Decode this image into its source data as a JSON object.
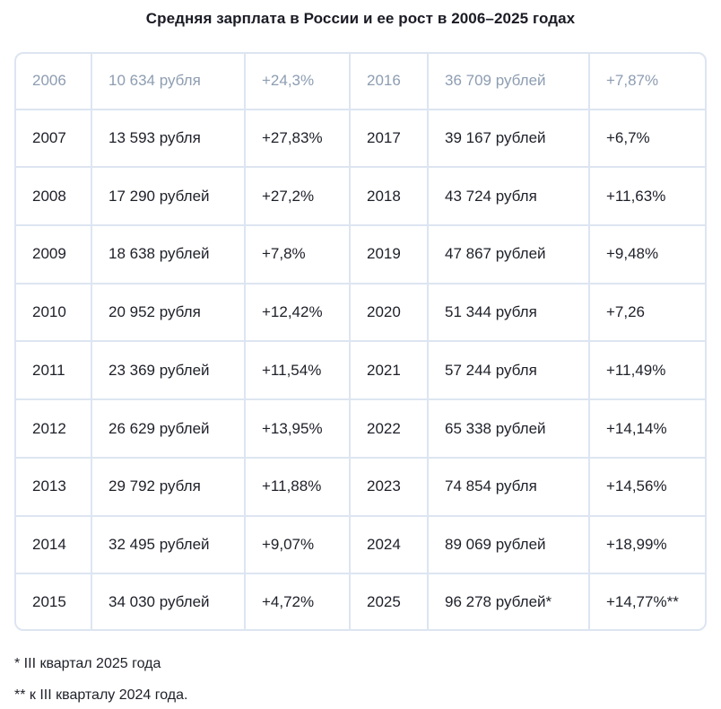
{
  "title": "Средняя зарплата в России и ее рост в 2006–2025 годах",
  "colors": {
    "background": "#ffffff",
    "title_text": "#1a1b24",
    "cell_text": "#1e2029",
    "muted_row_text": "#8d9db1",
    "table_border": "#dde5f1"
  },
  "table": {
    "rows": [
      {
        "muted": true,
        "cells": [
          "2006",
          "10 634 рубля",
          "+24,3%",
          "2016",
          "36 709 рублей",
          "+7,87%"
        ]
      },
      {
        "muted": false,
        "cells": [
          "2007",
          "13 593 рубля",
          "+27,83%",
          "2017",
          "39 167 рублей",
          "+6,7%"
        ]
      },
      {
        "muted": false,
        "cells": [
          "2008",
          "17 290 рублей",
          "+27,2%",
          "2018",
          "43 724 рубля",
          "+11,63%"
        ]
      },
      {
        "muted": false,
        "cells": [
          "2009",
          "18 638 рублей",
          "+7,8%",
          "2019",
          "47 867 рублей",
          "+9,48%"
        ]
      },
      {
        "muted": false,
        "cells": [
          "2010",
          "20 952 рубля",
          "+12,42%",
          "2020",
          "51 344 рубля",
          "+7,26"
        ]
      },
      {
        "muted": false,
        "cells": [
          "2011",
          "23 369 рублей",
          "+11,54%",
          "2021",
          "57 244 рубля",
          "+11,49%"
        ]
      },
      {
        "muted": false,
        "cells": [
          "2012",
          "26 629 рублей",
          "+13,95%",
          "2022",
          "65 338 рублей",
          "+14,14%"
        ]
      },
      {
        "muted": false,
        "cells": [
          "2013",
          "29 792 рубля",
          "+11,88%",
          "2023",
          "74 854 рубля",
          "+14,56%"
        ]
      },
      {
        "muted": false,
        "cells": [
          "2014",
          "32 495 рублей",
          "+9,07%",
          "2024",
          "89 069 рублей",
          "+18,99%"
        ]
      },
      {
        "muted": false,
        "cells": [
          "2015",
          "34 030 рублей",
          "+4,72%",
          "2025",
          "96 278 рублей*",
          "+14,77%**"
        ]
      }
    ]
  },
  "footnotes": [
    "* III квартал 2025 года",
    "** к III кварталу 2024 года."
  ],
  "chart_data": {
    "type": "table",
    "title": "Средняя зарплата в России и ее рост в 2006–2025 годах",
    "points": [
      {
        "year": 2006,
        "salary_rub": 10634,
        "growth_pct": 24.3
      },
      {
        "year": 2007,
        "salary_rub": 13593,
        "growth_pct": 27.83
      },
      {
        "year": 2008,
        "salary_rub": 17290,
        "growth_pct": 27.2
      },
      {
        "year": 2009,
        "salary_rub": 18638,
        "growth_pct": 7.8
      },
      {
        "year": 2010,
        "salary_rub": 20952,
        "growth_pct": 12.42
      },
      {
        "year": 2011,
        "salary_rub": 23369,
        "growth_pct": 11.54
      },
      {
        "year": 2012,
        "salary_rub": 26629,
        "growth_pct": 13.95
      },
      {
        "year": 2013,
        "salary_rub": 29792,
        "growth_pct": 11.88
      },
      {
        "year": 2014,
        "salary_rub": 32495,
        "growth_pct": 9.07
      },
      {
        "year": 2015,
        "salary_rub": 34030,
        "growth_pct": 4.72
      },
      {
        "year": 2016,
        "salary_rub": 36709,
        "growth_pct": 7.87
      },
      {
        "year": 2017,
        "salary_rub": 39167,
        "growth_pct": 6.7
      },
      {
        "year": 2018,
        "salary_rub": 43724,
        "growth_pct": 11.63
      },
      {
        "year": 2019,
        "salary_rub": 47867,
        "growth_pct": 9.48
      },
      {
        "year": 2020,
        "salary_rub": 51344,
        "growth_pct": 7.26
      },
      {
        "year": 2021,
        "salary_rub": 57244,
        "growth_pct": 11.49
      },
      {
        "year": 2022,
        "salary_rub": 65338,
        "growth_pct": 14.14
      },
      {
        "year": 2023,
        "salary_rub": 74854,
        "growth_pct": 14.56
      },
      {
        "year": 2024,
        "salary_rub": 89069,
        "growth_pct": 18.99
      },
      {
        "year": 2025,
        "salary_rub": 96278,
        "growth_pct": 14.77
      }
    ],
    "notes": [
      "* III квартал 2025 года",
      "** к III кварталу 2024 года."
    ]
  }
}
